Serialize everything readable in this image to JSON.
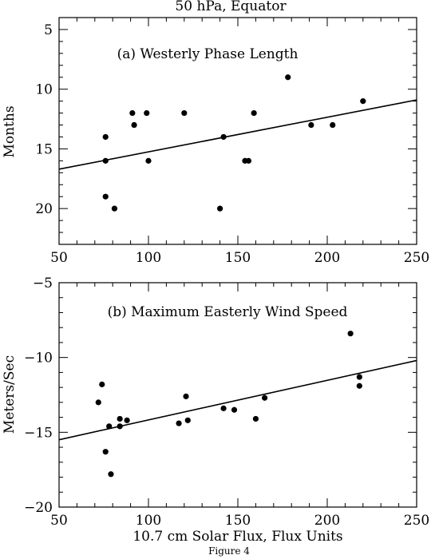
{
  "page": {
    "title": "50 hPa, Equator",
    "caption": "Figure 4"
  },
  "chart_data": [
    {
      "type": "scatter",
      "panel_label": "(a) Westerly Phase Length",
      "xlabel": "",
      "ylabel": "Months",
      "xlim": [
        50,
        250
      ],
      "ylim": [
        23,
        4
      ],
      "y_inverted": true,
      "x_ticks": [
        50,
        100,
        150,
        200,
        250
      ],
      "y_ticks": [
        5,
        10,
        15,
        20
      ],
      "points": [
        {
          "x": 76,
          "y": 14
        },
        {
          "x": 76,
          "y": 16
        },
        {
          "x": 76,
          "y": 19
        },
        {
          "x": 81,
          "y": 20
        },
        {
          "x": 91,
          "y": 12
        },
        {
          "x": 92,
          "y": 13
        },
        {
          "x": 99,
          "y": 12
        },
        {
          "x": 100,
          "y": 16
        },
        {
          "x": 120,
          "y": 12
        },
        {
          "x": 140,
          "y": 20
        },
        {
          "x": 142,
          "y": 14
        },
        {
          "x": 154,
          "y": 16
        },
        {
          "x": 156,
          "y": 16
        },
        {
          "x": 159,
          "y": 12
        },
        {
          "x": 178,
          "y": 9
        },
        {
          "x": 191,
          "y": 13
        },
        {
          "x": 203,
          "y": 13
        },
        {
          "x": 220,
          "y": 11
        }
      ],
      "fit_line": {
        "x": [
          50,
          250
        ],
        "y": [
          16.7,
          10.9
        ]
      }
    },
    {
      "type": "scatter",
      "panel_label": "(b) Maximum Easterly Wind Speed",
      "xlabel": "10.7 cm Solar Flux, Flux Units",
      "ylabel": "Meters/Sec",
      "xlim": [
        50,
        250
      ],
      "ylim": [
        -20,
        -5
      ],
      "y_inverted": false,
      "x_ticks": [
        50,
        100,
        150,
        200,
        250
      ],
      "y_ticks": [
        -20,
        -15,
        -10,
        -5
      ],
      "points": [
        {
          "x": 72,
          "y": -13.0
        },
        {
          "x": 74,
          "y": -11.8
        },
        {
          "x": 76,
          "y": -16.3
        },
        {
          "x": 78,
          "y": -14.6
        },
        {
          "x": 79,
          "y": -17.8
        },
        {
          "x": 84,
          "y": -14.1
        },
        {
          "x": 84,
          "y": -14.6
        },
        {
          "x": 88,
          "y": -14.2
        },
        {
          "x": 117,
          "y": -14.4
        },
        {
          "x": 121,
          "y": -12.6
        },
        {
          "x": 122,
          "y": -14.2
        },
        {
          "x": 142,
          "y": -13.4
        },
        {
          "x": 148,
          "y": -13.5
        },
        {
          "x": 160,
          "y": -14.1
        },
        {
          "x": 165,
          "y": -12.7
        },
        {
          "x": 213,
          "y": -8.4
        },
        {
          "x": 218,
          "y": -11.3
        },
        {
          "x": 218,
          "y": -11.9
        }
      ],
      "fit_line": {
        "x": [
          50,
          250
        ],
        "y": [
          -15.5,
          -10.2
        ]
      }
    }
  ]
}
